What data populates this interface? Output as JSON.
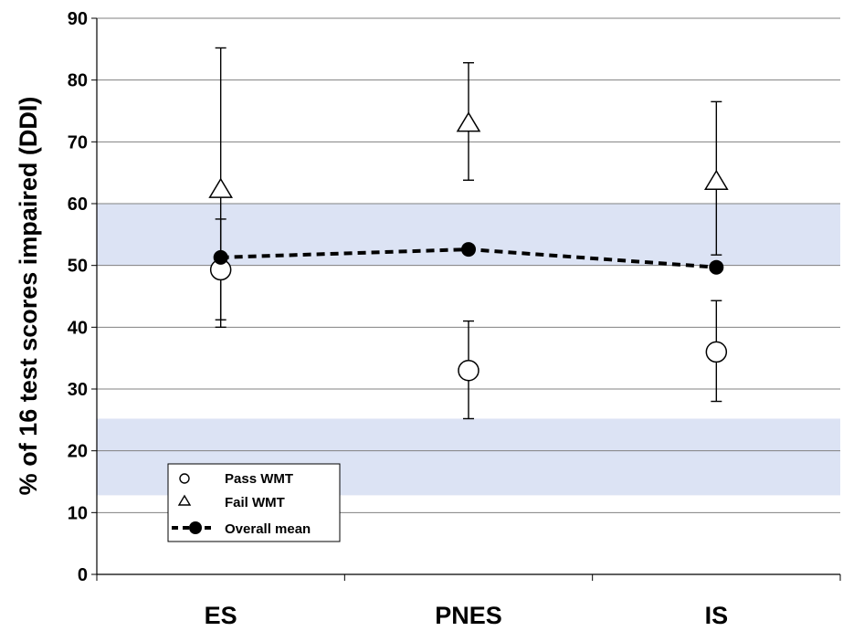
{
  "chart_data": {
    "type": "scatter",
    "title": "",
    "xlabel": "",
    "ylabel": "% of 16 test scores impaired (DDI)",
    "categories": [
      "ES",
      "PNES",
      "IS"
    ],
    "ylim": [
      0,
      90
    ],
    "yticks": [
      0,
      10,
      20,
      30,
      40,
      50,
      60,
      70,
      80,
      90
    ],
    "grid": true,
    "shaded_bands": [
      {
        "from": 12.8,
        "to": 25.2,
        "color": "#dce3f4"
      },
      {
        "from": 50.0,
        "to": 60.0,
        "color": "#dce3f4"
      }
    ],
    "legend_position": "bottom-left",
    "series": [
      {
        "name": "Pass WMT",
        "marker": "open-circle",
        "values": [
          49.3,
          33.0,
          36.0
        ],
        "error_low": [
          41.2,
          25.2,
          28.0
        ],
        "error_high": [
          57.5,
          41.0,
          44.3
        ]
      },
      {
        "name": "Fail WMT",
        "marker": "open-triangle",
        "values": [
          62.5,
          73.2,
          63.8
        ],
        "error_low": [
          40.0,
          63.8,
          51.7
        ],
        "error_high": [
          85.2,
          82.8,
          76.5
        ]
      },
      {
        "name": "Overall mean",
        "marker": "filled-circle",
        "line": "dashed",
        "values": [
          51.3,
          52.6,
          49.7
        ]
      }
    ]
  },
  "colors": {
    "band": "#dce3f4",
    "grid": "#808080",
    "ink": "#000000"
  }
}
